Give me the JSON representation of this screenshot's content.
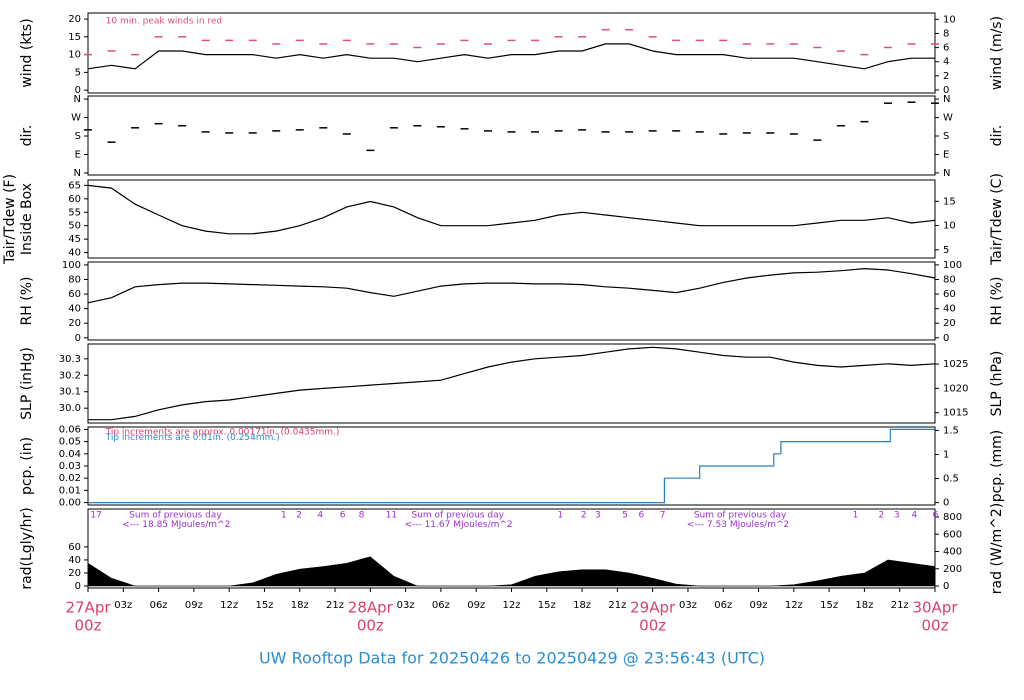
{
  "chart_data": {
    "type": "multi-panel",
    "title": "UW Rooftop Data for 20250426  to  20250429 @ 23:56:43  (UTC)",
    "x": [
      0,
      2,
      4,
      6,
      8,
      10,
      12,
      14,
      16,
      18,
      20,
      22,
      24,
      26,
      28,
      30,
      32,
      34,
      36,
      38,
      40,
      42,
      44,
      46,
      48,
      50,
      52,
      54,
      56,
      58,
      60,
      62,
      64,
      66,
      68,
      70,
      72
    ],
    "xlim": [
      0,
      72
    ],
    "xticks": [
      {
        "value": 0,
        "label": "27Apr",
        "label2": "00z"
      },
      {
        "value": 3,
        "label": "03z"
      },
      {
        "value": 6,
        "label": "06z"
      },
      {
        "value": 9,
        "label": "09z"
      },
      {
        "value": 12,
        "label": "12z"
      },
      {
        "value": 15,
        "label": "15z"
      },
      {
        "value": 18,
        "label": "18z"
      },
      {
        "value": 21,
        "label": "21z"
      },
      {
        "value": 24,
        "label": "28Apr",
        "label2": "00z"
      },
      {
        "value": 27,
        "label": "03z"
      },
      {
        "value": 30,
        "label": "06z"
      },
      {
        "value": 33,
        "label": "09z"
      },
      {
        "value": 36,
        "label": "12z"
      },
      {
        "value": 39,
        "label": "15z"
      },
      {
        "value": 42,
        "label": "18z"
      },
      {
        "value": 45,
        "label": "21z"
      },
      {
        "value": 48,
        "label": "29Apr",
        "label2": "00z"
      },
      {
        "value": 51,
        "label": "03z"
      },
      {
        "value": 54,
        "label": "06z"
      },
      {
        "value": 57,
        "label": "09z"
      },
      {
        "value": 60,
        "label": "12z"
      },
      {
        "value": 63,
        "label": "15z"
      },
      {
        "value": 66,
        "label": "18z"
      },
      {
        "value": 69,
        "label": "21z"
      },
      {
        "value": 72,
        "label": "30Apr",
        "label2": "00z"
      }
    ],
    "panels": [
      {
        "type": "line",
        "ylabel": "wind (kts)",
        "y2label": "wind (m/s)",
        "ylim": [
          -0.8,
          21.7
        ],
        "yticks": [
          0,
          5,
          10,
          15,
          20
        ],
        "y2lim": [
          -0.43,
          10.9
        ],
        "y2ticks": [
          0,
          2,
          4,
          6,
          8,
          10
        ],
        "series": [
          {
            "type": "line",
            "color": "#000000",
            "values": [
              6,
              7,
              6,
              11,
              11,
              10,
              10,
              10,
              9,
              10,
              9,
              10,
              9,
              9,
              8,
              9,
              10,
              9,
              10,
              10,
              11,
              11,
              13,
              13,
              11,
              10,
              10,
              10,
              9,
              9,
              9,
              8,
              7,
              6,
              8,
              9,
              9
            ]
          },
          {
            "type": "dash",
            "color": "#e0507a",
            "values": [
              10,
              11,
              10,
              15,
              15,
              14,
              14,
              14,
              13,
              14,
              13,
              14,
              13,
              13,
              12,
              13,
              14,
              13,
              14,
              14,
              15,
              15,
              17,
              17,
              15,
              14,
              14,
              14,
              13,
              13,
              13,
              12,
              11,
              10,
              12,
              13,
              13
            ]
          }
        ],
        "annotations": [
          {
            "text": "10 min. peak winds in red",
            "x": 1.5,
            "y": 19.5,
            "color": "#e0507a"
          }
        ]
      },
      {
        "type": "scatter",
        "ylabel": "dir.",
        "y2label": "dir.",
        "ylim": [
          -10,
          375
        ],
        "yticks": [
          {
            "value": 0,
            "label": "N"
          },
          {
            "value": 90,
            "label": "E"
          },
          {
            "value": 180,
            "label": "S"
          },
          {
            "value": 270,
            "label": "W"
          },
          {
            "value": 360,
            "label": "N"
          }
        ],
        "y2lim": [
          -10,
          375
        ],
        "y2ticks": [
          {
            "value": 0,
            "label": "N"
          },
          {
            "value": 90,
            "label": "E"
          },
          {
            "value": 180,
            "label": "S"
          },
          {
            "value": 270,
            "label": "W"
          },
          {
            "value": 360,
            "label": "N"
          }
        ],
        "series": [
          {
            "type": "dash",
            "color": "#000000",
            "values": [
              210,
              150,
              220,
              240,
              230,
              200,
              195,
              195,
              205,
              210,
              220,
              190,
              110,
              220,
              230,
              225,
              215,
              205,
              200,
              200,
              205,
              210,
              200,
              200,
              205,
              205,
              200,
              190,
              195,
              195,
              190,
              160,
              230,
              250,
              340,
              345,
              340
            ]
          }
        ]
      },
      {
        "type": "line",
        "ylabel": [
          "Tair/Tdew (F)",
          "Inside Box"
        ],
        "y2label": "Tair/Tdew (C)",
        "ylim": [
          38,
          67
        ],
        "yticks": [
          40,
          45,
          50,
          55,
          60,
          65
        ],
        "y2lim": [
          3.3,
          19.4
        ],
        "y2ticks": [
          5,
          10,
          15
        ],
        "series": [
          {
            "type": "line",
            "color": "#000000",
            "values": [
              65,
              64,
              58,
              54,
              50,
              48,
              47,
              47,
              48,
              50,
              53,
              57,
              59,
              57,
              53,
              50,
              50,
              50,
              51,
              52,
              54,
              55,
              54,
              53,
              52,
              51,
              50,
              50,
              50,
              50,
              50,
              51,
              52,
              52,
              53,
              51,
              52
            ]
          }
        ]
      },
      {
        "type": "line",
        "ylabel": "RH (%)",
        "y2label": "RH (%)",
        "ylim": [
          -3,
          104
        ],
        "yticks": [
          0,
          20,
          40,
          60,
          80,
          100
        ],
        "y2lim": [
          -3,
          104
        ],
        "y2ticks": [
          0,
          20,
          40,
          60,
          80,
          100
        ],
        "series": [
          {
            "type": "line",
            "color": "#000000",
            "values": [
              48,
              55,
              70,
              73,
              75,
              75,
              74,
              73,
              72,
              71,
              70,
              68,
              62,
              57,
              64,
              71,
              74,
              75,
              75,
              74,
              74,
              73,
              70,
              68,
              65,
              62,
              68,
              76,
              82,
              86,
              89,
              90,
              92,
              95,
              93,
              88,
              82
            ]
          }
        ]
      },
      {
        "type": "line",
        "ylabel": "SLP (inHg)",
        "y2label": "SLP (hPa)",
        "ylim": [
          29.91,
          30.39
        ],
        "yticks": [
          {
            "value": 30.0,
            "label": "30.0"
          },
          30.1,
          30.2,
          30.3
        ],
        "y2lim": [
          1012.87,
          1029.13
        ],
        "y2ticks": [
          1015,
          1020,
          1025
        ],
        "series": [
          {
            "type": "line",
            "color": "#000000",
            "values": [
              29.93,
              29.93,
              29.95,
              29.99,
              30.02,
              30.04,
              30.05,
              30.07,
              30.09,
              30.11,
              30.12,
              30.13,
              30.14,
              30.15,
              30.16,
              30.17,
              30.21,
              30.25,
              30.28,
              30.3,
              30.31,
              30.32,
              30.34,
              30.36,
              30.37,
              30.36,
              30.34,
              30.32,
              30.31,
              30.31,
              30.28,
              30.26,
              30.25,
              30.26,
              30.27,
              30.26,
              30.27
            ]
          }
        ]
      },
      {
        "type": "line",
        "ylabel": "pcp. (in)",
        "y2label": "pcp. (mm)",
        "ylim": [
          -0.002,
          0.062
        ],
        "yticks": [
          {
            "value": 0,
            "label": "0.00"
          },
          {
            "value": 0.01,
            "label": "0.01"
          },
          {
            "value": 0.02,
            "label": "0.02"
          },
          {
            "value": 0.03,
            "label": "0.03"
          },
          {
            "value": 0.04,
            "label": "0.04"
          },
          {
            "value": 0.05,
            "label": "0.05"
          },
          {
            "value": 0.06,
            "label": "0.06"
          }
        ],
        "y2lim": [
          -0.05,
          1.57
        ],
        "y2ticks": [
          0,
          0.5,
          1,
          1.5
        ],
        "x": [
          0,
          49,
          49,
          52,
          52,
          58.3,
          58.3,
          58.9,
          58.9,
          68.2,
          68.2,
          72
        ],
        "series": [
          {
            "type": "line",
            "color": "#2a7fc0",
            "values": [
              0,
              0,
              0.02,
              0.02,
              0.03,
              0.03,
              0.04,
              0.04,
              0.05,
              0.05,
              0.06,
              0.06
            ]
          }
        ],
        "annotations": [
          {
            "text": "Tip increments are approx. 0.00171in. (0.0435mm.)",
            "x": 1.5,
            "y": 0.0578,
            "color": "#d9406a"
          },
          {
            "text": "Tip increments are 0.01in. (0.254mm.)",
            "x": 1.5,
            "y": 0.0533,
            "color": "#2a8fd0"
          }
        ]
      },
      {
        "type": "area",
        "ylabel": "rad(Lgly/hr)",
        "y2label": "rad (W/m^2)",
        "ylim": [
          -3,
          118
        ],
        "yticks": [
          0,
          20,
          40,
          60
        ],
        "y2lim": [
          -23,
          893
        ],
        "y2ticks": [
          0,
          200,
          400,
          600,
          800
        ],
        "series": [
          {
            "type": "area",
            "color": "#000000",
            "values": [
              35,
              12,
              0,
              0,
              0,
              0,
              0,
              5,
              18,
              26,
              30,
              35,
              45,
              15,
              0,
              0,
              0,
              0,
              2,
              15,
              22,
              25,
              25,
              20,
              12,
              3,
              0,
              0,
              0,
              0,
              2,
              8,
              15,
              20,
              40,
              35,
              30
            ]
          }
        ],
        "annotations": [
          {
            "text": "17",
            "x": 0.2,
            "y": 109,
            "color": "#9b30d0"
          },
          {
            "text": "1",
            "x": 16.4,
            "y": 109,
            "color": "#9b30d0"
          },
          {
            "text": "2",
            "x": 17.7,
            "y": 109,
            "color": "#9b30d0"
          },
          {
            "text": "4",
            "x": 19.5,
            "y": 109,
            "color": "#9b30d0"
          },
          {
            "text": "6",
            "x": 21.4,
            "y": 109,
            "color": "#9b30d0"
          },
          {
            "text": "8",
            "x": 23,
            "y": 109,
            "color": "#9b30d0"
          },
          {
            "text": "11",
            "x": 25.3,
            "y": 109,
            "color": "#9b30d0"
          },
          {
            "text": "1",
            "x": 39.9,
            "y": 109,
            "color": "#9b30d0"
          },
          {
            "text": "2",
            "x": 41.9,
            "y": 109,
            "color": "#9b30d0"
          },
          {
            "text": "3",
            "x": 43.1,
            "y": 109,
            "color": "#9b30d0"
          },
          {
            "text": "5",
            "x": 45.4,
            "y": 109,
            "color": "#9b30d0"
          },
          {
            "text": "6",
            "x": 46.8,
            "y": 109,
            "color": "#9b30d0"
          },
          {
            "text": "7",
            "x": 48.6,
            "y": 109,
            "color": "#9b30d0"
          },
          {
            "text": "1",
            "x": 65,
            "y": 109,
            "color": "#9b30d0"
          },
          {
            "text": "2",
            "x": 67.2,
            "y": 109,
            "color": "#9b30d0"
          },
          {
            "text": "3",
            "x": 68.5,
            "y": 109,
            "color": "#9b30d0"
          },
          {
            "text": "4",
            "x": 70,
            "y": 109,
            "color": "#9b30d0"
          },
          {
            "text": "6",
            "x": 71.8,
            "y": 109,
            "color": "#9b30d0"
          },
          {
            "text": "Sum of previous day",
            "x": 3.5,
            "y": 109,
            "color": "#9b30d0"
          },
          {
            "text": "<--- 18.85 MJoules/m^2",
            "x": 2.9,
            "y": 94,
            "color": "#9b30d0"
          },
          {
            "text": "Sum of previous day",
            "x": 27.5,
            "y": 109,
            "color": "#9b30d0"
          },
          {
            "text": "<--- 11.67 MJoules/m^2",
            "x": 26.9,
            "y": 94,
            "color": "#9b30d0"
          },
          {
            "text": "Sum of previous day",
            "x": 51.5,
            "y": 109,
            "color": "#9b30d0"
          },
          {
            "text": "<--- 7.53 MJoules/m^2",
            "x": 50.9,
            "y": 94,
            "color": "#9b30d0"
          }
        ]
      }
    ]
  }
}
